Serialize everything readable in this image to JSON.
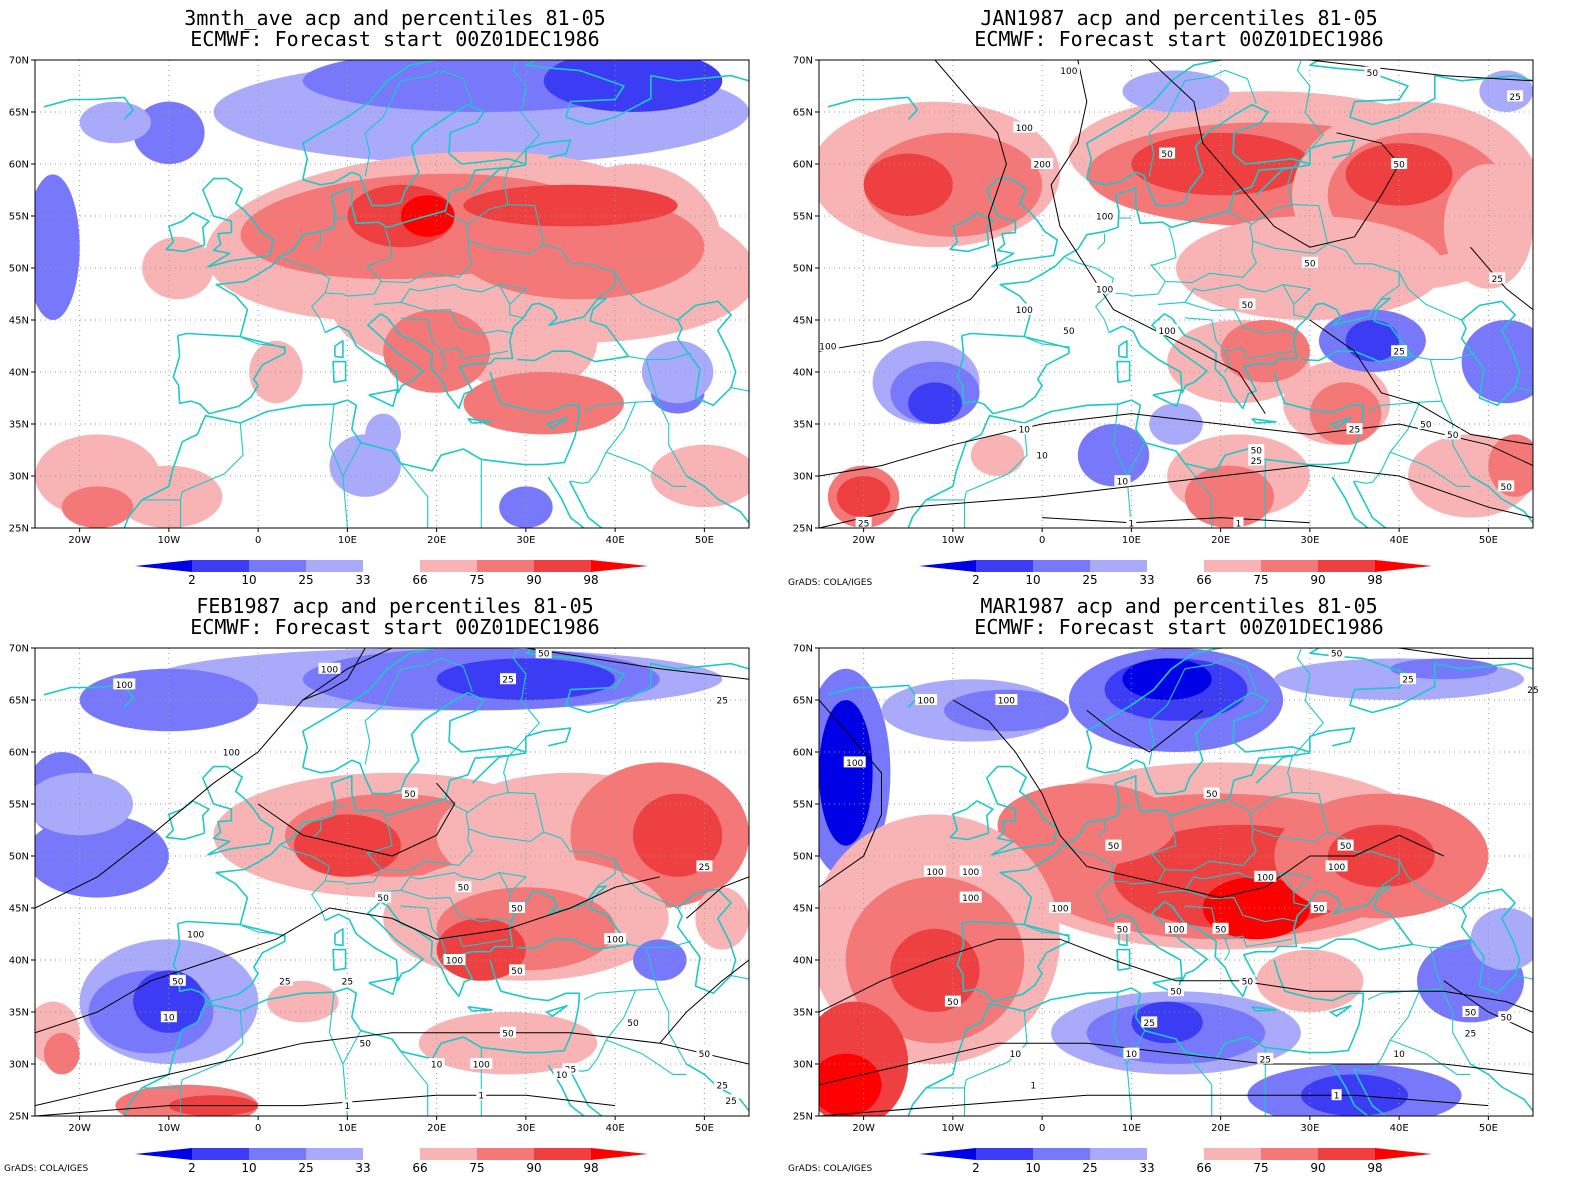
{
  "colors": {
    "p2": "#0000e6",
    "p10": "#3c3cf5",
    "p25": "#7878fa",
    "p33": "#aaaafa",
    "p66": "#f8b4b4",
    "p75": "#f47878",
    "p90": "#ee4040",
    "p98": "#ff0000",
    "coast": "#1ec8c8",
    "contour": "#000000"
  },
  "axes": {
    "lat_ticks": [
      "25N",
      "30N",
      "35N",
      "40N",
      "45N",
      "50N",
      "55N",
      "60N",
      "65N",
      "70N"
    ],
    "lon_ticks": [
      "20W",
      "10W",
      "0",
      "10E",
      "20E",
      "30E",
      "40E",
      "50E"
    ]
  },
  "colorbar": {
    "ticks": [
      "2",
      "10",
      "25",
      "33",
      "66",
      "75",
      "90",
      "98"
    ]
  },
  "credit": "GrADS: COLA/IGES",
  "panels": [
    {
      "title1": "3mnth_ave acp and percentiles 81-05",
      "title2": "ECMWF: Forecast start 00Z01DEC1986",
      "show_credit": false,
      "contour_labels": []
    },
    {
      "title1": "JAN1987 acp and percentiles 81-05",
      "title2": "ECMWF: Forecast start 00Z01DEC1986",
      "show_credit": true,
      "contour_labels": [
        "100",
        "50",
        "25",
        "100",
        "200",
        "50",
        "100",
        "50",
        "50",
        "100",
        "25",
        "100",
        "50",
        "50",
        "100",
        "100",
        "25",
        "50",
        "25",
        "10",
        "10",
        "50",
        "25",
        "50",
        "10",
        "25",
        "50",
        "1",
        "1"
      ]
    },
    {
      "title1": "FEB1987 acp and percentiles 81-05",
      "title2": "ECMWF: Forecast start 00Z01DEC1986",
      "show_credit": true,
      "contour_labels": [
        "50",
        "100",
        "25",
        "100",
        "25",
        "100",
        "50",
        "25",
        "50",
        "50",
        "50",
        "100",
        "100",
        "100",
        "50",
        "25",
        "25",
        "50",
        "10",
        "50",
        "100",
        "50",
        "25",
        "50",
        "10",
        "10",
        "25",
        "1",
        "1",
        "50",
        "25"
      ]
    },
    {
      "title1": "MAR1987 acp and percentiles 81-05",
      "title2": "ECMWF: Forecast start 00Z01DEC1986",
      "show_credit": true,
      "contour_labels": [
        "50",
        "25",
        "100",
        "25",
        "100",
        "100",
        "50",
        "50",
        "100",
        "100",
        "50",
        "100",
        "100",
        "50",
        "100",
        "100",
        "50",
        "100",
        "50",
        "50",
        "25",
        "50",
        "50",
        "25",
        "10",
        "10",
        "25",
        "10",
        "1",
        "1",
        "50",
        "50"
      ]
    }
  ]
}
